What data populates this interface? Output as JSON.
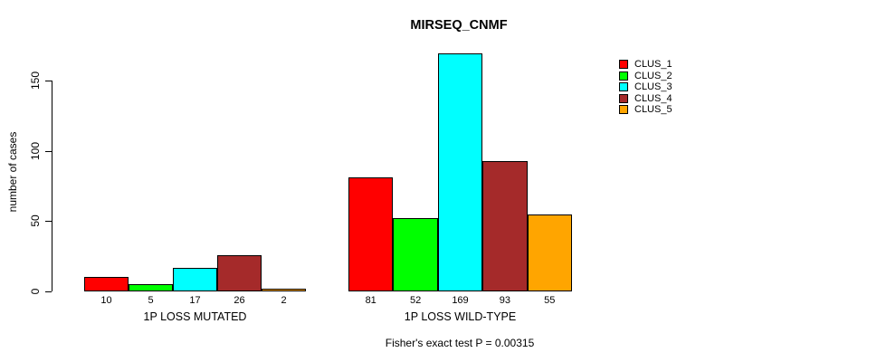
{
  "title": "MIRSEQ_CNMF",
  "y_axis": {
    "label": "number of cases"
  },
  "caption": "Fisher's exact test P = 0.00315",
  "chart_data": {
    "type": "bar",
    "title": "MIRSEQ_CNMF",
    "xlabel": "",
    "ylabel": "number of cases",
    "ylim": [
      0,
      175
    ],
    "yticks": [
      0,
      50,
      100,
      150
    ],
    "grid": false,
    "legend_position": "right",
    "series": [
      "CLUS_1",
      "CLUS_2",
      "CLUS_3",
      "CLUS_4",
      "CLUS_5"
    ],
    "colors": [
      "#FF0000",
      "#00FF00",
      "#00FFFF",
      "#A52A2A",
      "#FFA500"
    ],
    "groups": [
      {
        "label": "1P LOSS MUTATED",
        "values": [
          10,
          5,
          17,
          26,
          2
        ]
      },
      {
        "label": "1P LOSS WILD-TYPE",
        "values": [
          81,
          52,
          169,
          93,
          55
        ]
      }
    ],
    "annotation": "Fisher's exact test P = 0.00315"
  }
}
